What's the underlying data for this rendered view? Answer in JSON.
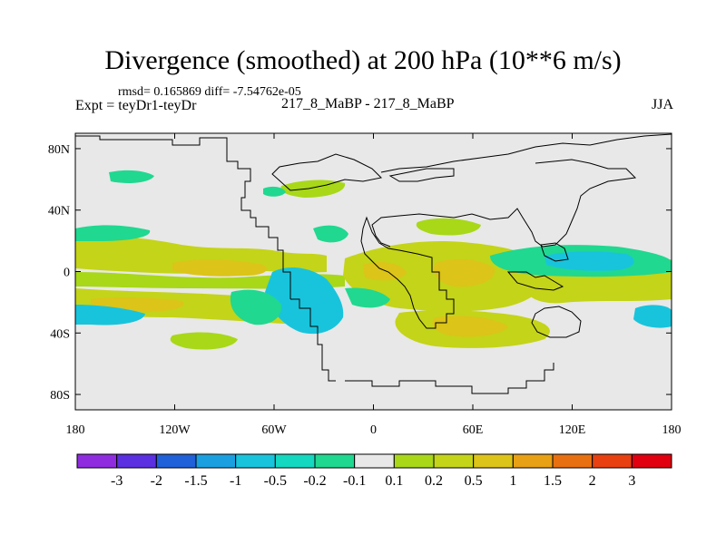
{
  "chart_data": {
    "type": "filled-contour-map",
    "title": "Divergence (smoothed) at 200 hPa (10**6 m/s)",
    "stats": "rmsd= 0.165869 diff= -7.54762e-05",
    "experiment": "Expt = teyDr1-teyDr",
    "case": "217_8_MaBP - 217_8_MaBP",
    "season": "JJA",
    "lon_range": [
      -180,
      180
    ],
    "lat_range": [
      -90,
      90
    ],
    "x_ticks": [
      {
        "value": -180,
        "label": "180"
      },
      {
        "value": -120,
        "label": "120W"
      },
      {
        "value": -60,
        "label": "60W"
      },
      {
        "value": 0,
        "label": "0"
      },
      {
        "value": 60,
        "label": "60E"
      },
      {
        "value": 120,
        "label": "120E"
      },
      {
        "value": 180,
        "label": "180"
      }
    ],
    "y_ticks": [
      {
        "value": 80,
        "label": "80N"
      },
      {
        "value": 40,
        "label": "40N"
      },
      {
        "value": 0,
        "label": "0"
      },
      {
        "value": -40,
        "label": "40S"
      },
      {
        "value": -80,
        "label": "80S"
      }
    ],
    "colorbar": {
      "colors": [
        "#8f2ce0",
        "#5a30e0",
        "#2060d8",
        "#1aa0e0",
        "#18c4dc",
        "#14d8c0",
        "#20d890",
        "#e8e8e8",
        "#a8d818",
        "#c4d418",
        "#dcc418",
        "#e8a014",
        "#e87010",
        "#e84010",
        "#e00010"
      ],
      "labels": [
        "-3",
        "-2",
        "-1.5",
        "-1",
        "-0.5",
        "-0.2",
        "-0.1",
        "0.1",
        "0.2",
        "0.5",
        "1",
        "1.5",
        "2",
        "3"
      ]
    },
    "features": [
      {
        "name": "tropical positive band",
        "lon": [
          -180,
          180
        ],
        "lat": [
          -10,
          15
        ],
        "value": 0.5
      },
      {
        "name": "south american negative",
        "lon": [
          -100,
          -10
        ],
        "lat": [
          -45,
          -5
        ],
        "value": -0.5
      },
      {
        "name": "african/indian positive",
        "lon": [
          -10,
          90
        ],
        "lat": [
          -40,
          30
        ],
        "value": 0.5
      },
      {
        "name": "west pacific negative",
        "lon": [
          90,
          160
        ],
        "lat": [
          -5,
          10
        ],
        "value": -1
      }
    ]
  }
}
